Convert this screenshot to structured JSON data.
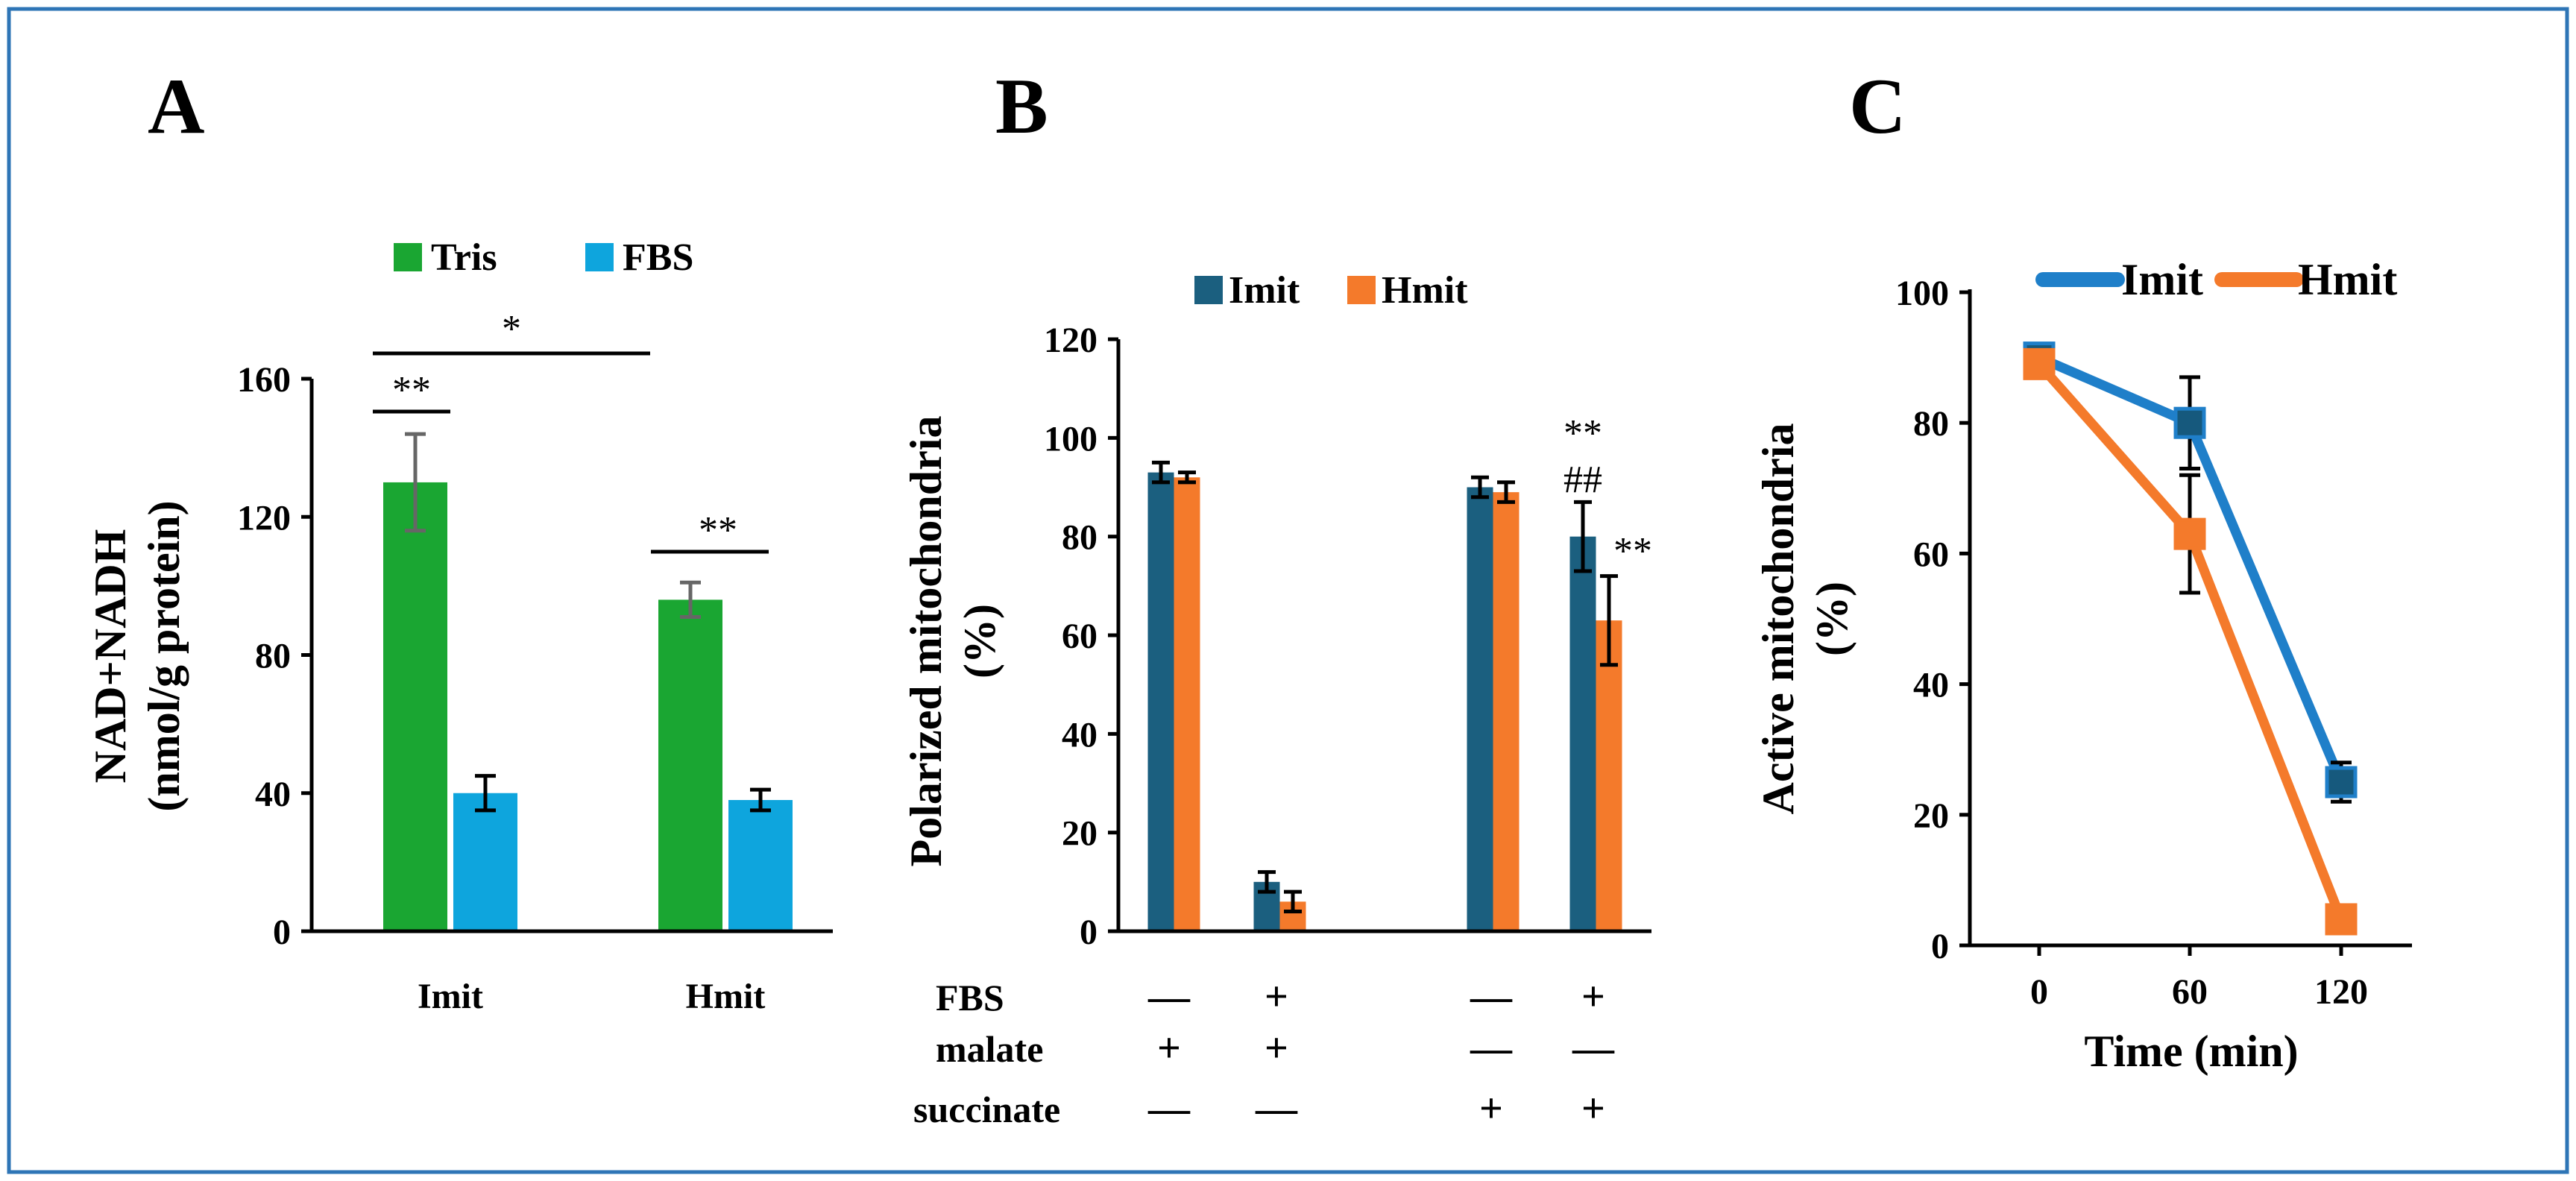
{
  "frame_color": "#2e75b6",
  "chart_data": [
    {
      "panel": "A",
      "type": "bar",
      "categories": [
        "Imit",
        "Hmit"
      ],
      "series": [
        {
          "name": "Tris",
          "color": "#1aa632",
          "values": [
            130,
            96
          ],
          "errors": [
            14,
            5
          ]
        },
        {
          "name": "FBS",
          "color": "#0ea5dd",
          "values": [
            40,
            38
          ],
          "errors": [
            5,
            3
          ]
        }
      ],
      "ylabel_line1": "NAD+NADH",
      "ylabel_line2": "(nmol/g protein)",
      "ylim": [
        0,
        160
      ],
      "yticks": [
        0,
        40,
        80,
        120,
        160
      ],
      "ytick_labels": [
        "0",
        "40",
        "80",
        "120",
        "160"
      ],
      "legend_position": "top",
      "annotations": [
        "*",
        "**",
        "**"
      ]
    },
    {
      "panel": "B",
      "type": "bar",
      "groups": 4,
      "series": [
        {
          "name": "Imit",
          "color": "#1b5f7f",
          "values": [
            93,
            10,
            90,
            80
          ],
          "errors": [
            2,
            2,
            2,
            7
          ]
        },
        {
          "name": "Hmit",
          "color": "#f47a2b",
          "values": [
            92,
            6,
            89,
            63
          ],
          "errors": [
            1,
            2,
            2,
            9
          ]
        }
      ],
      "ylabel_line1": "Polarized mitochondria",
      "ylabel_line2": "(%)",
      "ylim": [
        0,
        120
      ],
      "yticks": [
        0,
        20,
        40,
        60,
        80,
        100,
        120
      ],
      "ytick_labels": [
        "0",
        "20",
        "40",
        "60",
        "80",
        "100",
        "120"
      ],
      "legend_position": "top",
      "annotations": [
        "**",
        "##",
        "**"
      ],
      "conditions": [
        {
          "label": "FBS",
          "signs": [
            "—",
            "+",
            "—",
            "+"
          ]
        },
        {
          "label": "malate",
          "signs": [
            "+",
            "+",
            "—",
            "—"
          ]
        },
        {
          "label": "succinate",
          "signs": [
            "—",
            "—",
            "+",
            "+"
          ]
        }
      ]
    },
    {
      "panel": "C",
      "type": "line",
      "x": [
        0,
        60,
        120
      ],
      "xtick_labels": [
        "0",
        "60",
        "120"
      ],
      "series": [
        {
          "name": "Imit",
          "color": "#1f7fc9",
          "marker_color": "#16597d",
          "values": [
            90,
            80,
            25
          ],
          "errors": [
            0,
            7,
            3
          ]
        },
        {
          "name": "Hmit",
          "color": "#f47a2b",
          "marker_color": "#f47a2b",
          "values": [
            89,
            63,
            4
          ],
          "errors": [
            0,
            9,
            0
          ]
        }
      ],
      "xlabel": "Time (min)",
      "ylabel_line1": "Active mitochondria",
      "ylabel_line2": "(%)",
      "ylim": [
        0,
        100
      ],
      "yticks": [
        0,
        20,
        40,
        60,
        80,
        100
      ],
      "ytick_labels": [
        "0",
        "20",
        "40",
        "60",
        "80",
        "100"
      ],
      "legend_position": "top"
    }
  ]
}
